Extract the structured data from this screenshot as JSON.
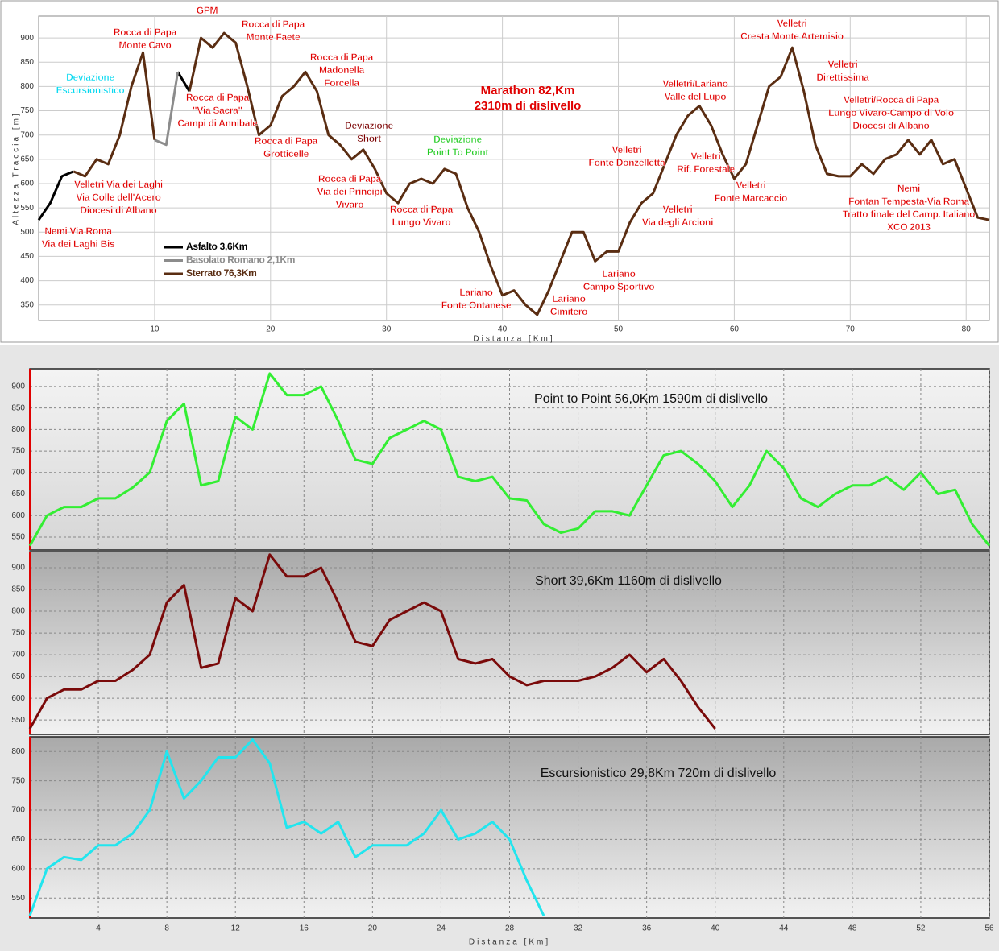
{
  "chart_data": [
    {
      "type": "line",
      "title": [
        "Marathon 82,Km",
        "2310m di dislivello"
      ],
      "title_color": "#e00000",
      "y_label": "Altezza Traccia [m]",
      "x_label": "Distanza [Km]",
      "xlim": [
        0,
        82
      ],
      "ylim": [
        318,
        945
      ],
      "xticks": [
        10,
        20,
        30,
        40,
        50,
        60,
        70,
        80
      ],
      "yticks": [
        350,
        400,
        450,
        500,
        550,
        600,
        650,
        700,
        750,
        800,
        850,
        900
      ],
      "grid": true,
      "legend": "lower left",
      "series": [
        {
          "name": "Asfalto 3,6Km",
          "color": "#000000",
          "x": [
            0,
            1,
            2,
            3,
            null,
            12,
            13
          ],
          "values": [
            525,
            560,
            615,
            625,
            null,
            830,
            790
          ]
        },
        {
          "name": "Basolato Romano 2,1Km",
          "color": "#8c8c8c",
          "x": [
            10,
            11,
            12
          ],
          "values": [
            690,
            680,
            830
          ]
        },
        {
          "name": "Sterrato 76,3Km",
          "color": "#5a2d12",
          "x": [
            3,
            4,
            5,
            6,
            7,
            8,
            9,
            10,
            null,
            13,
            14,
            15,
            16,
            17,
            18,
            19,
            20,
            21,
            22,
            23,
            24,
            25,
            26,
            27,
            28,
            29,
            30,
            31,
            32,
            33,
            34,
            35,
            36,
            37,
            38,
            39,
            40,
            41,
            42,
            43,
            44,
            45,
            46,
            47,
            48,
            49,
            50,
            51,
            52,
            53,
            54,
            55,
            56,
            57,
            58,
            59,
            60,
            61,
            62,
            63,
            64,
            65,
            66,
            67,
            68,
            69,
            70,
            71,
            72,
            73,
            74,
            75,
            76,
            77,
            78,
            79,
            80,
            81,
            82
          ],
          "values": [
            625,
            615,
            650,
            640,
            700,
            800,
            870,
            690,
            null,
            790,
            900,
            880,
            910,
            890,
            800,
            700,
            720,
            780,
            800,
            830,
            790,
            700,
            680,
            650,
            670,
            630,
            580,
            560,
            600,
            610,
            600,
            630,
            620,
            550,
            500,
            430,
            370,
            380,
            350,
            330,
            380,
            440,
            500,
            500,
            440,
            460,
            460,
            520,
            560,
            580,
            640,
            700,
            740,
            760,
            720,
            660,
            610,
            640,
            720,
            800,
            820,
            880,
            790,
            680,
            620,
            615,
            615,
            640,
            620,
            650,
            660,
            690,
            660,
            690,
            640,
            650,
            590,
            530,
            525
          ]
        }
      ],
      "annotations": [
        {
          "lines": [
            "Nemi Via Roma",
            "Via dei Laghi Bis"
          ],
          "color": "#e00000"
        },
        {
          "lines": [
            "Velletri Via dei Laghi",
            "Via Colle dell'Acero",
            "Diocesi di Albano"
          ],
          "color": "#e00000"
        },
        {
          "lines": [
            "Deviazione",
            "Escursionistico"
          ],
          "color": "#00d8f0"
        },
        {
          "lines": [
            "Rocca di Papa",
            "Monte Cavo"
          ],
          "color": "#e00000"
        },
        {
          "lines": [
            "GPM"
          ],
          "color": "#e00000"
        },
        {
          "lines": [
            "Rocca di Papa",
            "Monte Faete"
          ],
          "color": "#e00000"
        },
        {
          "lines": [
            "Rocca di Papa",
            "\"Via Sacra\"",
            "Campi di Annibale"
          ],
          "color": "#e00000"
        },
        {
          "lines": [
            "Rocca di Papa",
            "Madonella",
            "Forcella"
          ],
          "color": "#e00000"
        },
        {
          "lines": [
            "Rocca di Papa",
            "Grotticelle"
          ],
          "color": "#e00000"
        },
        {
          "lines": [
            "Deviazione",
            "Short"
          ],
          "color": "#7a0000"
        },
        {
          "lines": [
            "Rocca di Papa",
            "Via dei Principi",
            "Vivaro"
          ],
          "color": "#e00000"
        },
        {
          "lines": [
            "Rocca di Papa",
            "Lungo Vivaro"
          ],
          "color": "#e00000"
        },
        {
          "lines": [
            "Deviazione",
            "Point To Point"
          ],
          "color": "#22cc22"
        },
        {
          "lines": [
            "Lariano",
            "Fonte Ontanese"
          ],
          "color": "#e00000"
        },
        {
          "lines": [
            "Lariano",
            "Cimitero"
          ],
          "color": "#e00000"
        },
        {
          "lines": [
            "Lariano",
            "Campo Sportivo"
          ],
          "color": "#e00000"
        },
        {
          "lines": [
            "Velletri",
            "Fonte Donzelletta"
          ],
          "color": "#e00000"
        },
        {
          "lines": [
            "Velletri",
            "Via degli Arcioni"
          ],
          "color": "#e00000"
        },
        {
          "lines": [
            "Velletri/Lariano",
            "Valle del Lupo"
          ],
          "color": "#e00000"
        },
        {
          "lines": [
            "Velletri",
            "Rif. Forestale"
          ],
          "color": "#e00000"
        },
        {
          "lines": [
            "Velletri",
            "Fonte Marcaccio"
          ],
          "color": "#e00000"
        },
        {
          "lines": [
            "Velletri",
            "Cresta Monte Artemisio"
          ],
          "color": "#e00000"
        },
        {
          "lines": [
            "Velletri",
            "Direttissima"
          ],
          "color": "#e00000"
        },
        {
          "lines": [
            "Velletri/Rocca di Papa",
            "Lungo Vivaro-Campo di Volo",
            "Diocesi di Albano"
          ],
          "color": "#e00000"
        },
        {
          "lines": [
            "Nemi",
            "Fontan Tempesta-Via Roma",
            "Tratto finale del Camp. Italiano",
            "XCO 2013"
          ],
          "color": "#e00000"
        }
      ]
    },
    {
      "type": "line",
      "title": "Point to Point 56,0Km 1590m di dislivello",
      "color": "#33ee33",
      "xlim": [
        0,
        56
      ],
      "ylim": [
        520,
        941
      ],
      "grid": true,
      "xticks": [
        4,
        8,
        12,
        16,
        20,
        24,
        28,
        32,
        36,
        40,
        44,
        48,
        52,
        56
      ],
      "yticks": [
        550,
        600,
        650,
        700,
        750,
        800,
        850,
        900
      ],
      "x": [
        0,
        1,
        2,
        3,
        4,
        5,
        6,
        7,
        8,
        9,
        10,
        11,
        12,
        13,
        14,
        15,
        16,
        17,
        18,
        19,
        20,
        21,
        22,
        23,
        24,
        25,
        26,
        27,
        28,
        29,
        30,
        31,
        32,
        33,
        34,
        35,
        36,
        37,
        38,
        39,
        40,
        41,
        42,
        43,
        44,
        45,
        46,
        47,
        48,
        49,
        50,
        51,
        52,
        53,
        54,
        55,
        56
      ],
      "values": [
        530,
        600,
        620,
        620,
        640,
        640,
        665,
        700,
        820,
        860,
        670,
        680,
        830,
        800,
        930,
        880,
        880,
        900,
        820,
        730,
        720,
        780,
        800,
        820,
        800,
        690,
        680,
        690,
        640,
        635,
        580,
        560,
        570,
        610,
        610,
        600,
        670,
        740,
        750,
        720,
        680,
        620,
        670,
        750,
        710,
        640,
        620,
        650,
        670,
        670,
        690,
        660,
        700,
        650,
        660,
        580,
        530
      ]
    },
    {
      "type": "line",
      "title": "Short 39,6Km 1160m di dislivello",
      "color": "#7a0a0a",
      "xlim": [
        0,
        56
      ],
      "ylim": [
        517,
        937
      ],
      "grid": true,
      "xticks": [
        4,
        8,
        12,
        16,
        20,
        24,
        28,
        32,
        36,
        40,
        44,
        48,
        52,
        56
      ],
      "yticks": [
        550,
        600,
        650,
        700,
        750,
        800,
        850,
        900
      ],
      "x": [
        0,
        1,
        2,
        3,
        4,
        5,
        6,
        7,
        8,
        9,
        10,
        11,
        12,
        13,
        14,
        15,
        16,
        17,
        18,
        19,
        20,
        21,
        22,
        23,
        24,
        25,
        26,
        27,
        28,
        29,
        30,
        31,
        32,
        33,
        34,
        35,
        36,
        37,
        38,
        39,
        40
      ],
      "values": [
        530,
        600,
        620,
        620,
        640,
        640,
        665,
        700,
        820,
        860,
        670,
        680,
        830,
        800,
        930,
        880,
        880,
        900,
        820,
        730,
        720,
        780,
        800,
        820,
        800,
        690,
        680,
        690,
        650,
        630,
        640,
        640,
        640,
        650,
        670,
        700,
        660,
        690,
        640,
        580,
        530
      ]
    },
    {
      "type": "line",
      "title": "Escursionistico 29,8Km 720m di dislivello",
      "color": "#22e5ee",
      "xlim": [
        0,
        56
      ],
      "ylim": [
        516,
        825
      ],
      "grid": true,
      "x_label": "Distanza [Km]",
      "xticks": [
        4,
        8,
        12,
        16,
        20,
        24,
        28,
        32,
        36,
        40,
        44,
        48,
        52,
        56
      ],
      "yticks": [
        550,
        600,
        650,
        700,
        750,
        800
      ],
      "x": [
        0,
        1,
        2,
        3,
        4,
        5,
        6,
        7,
        8,
        9,
        10,
        11,
        12,
        13,
        14,
        15,
        16,
        17,
        18,
        19,
        20,
        21,
        22,
        23,
        24,
        25,
        26,
        27,
        28,
        29,
        30
      ],
      "values": [
        520,
        600,
        620,
        615,
        640,
        640,
        660,
        700,
        800,
        720,
        750,
        790,
        790,
        820,
        780,
        670,
        680,
        660,
        680,
        620,
        640,
        640,
        640,
        660,
        700,
        650,
        660,
        680,
        650,
        580,
        520
      ]
    }
  ]
}
